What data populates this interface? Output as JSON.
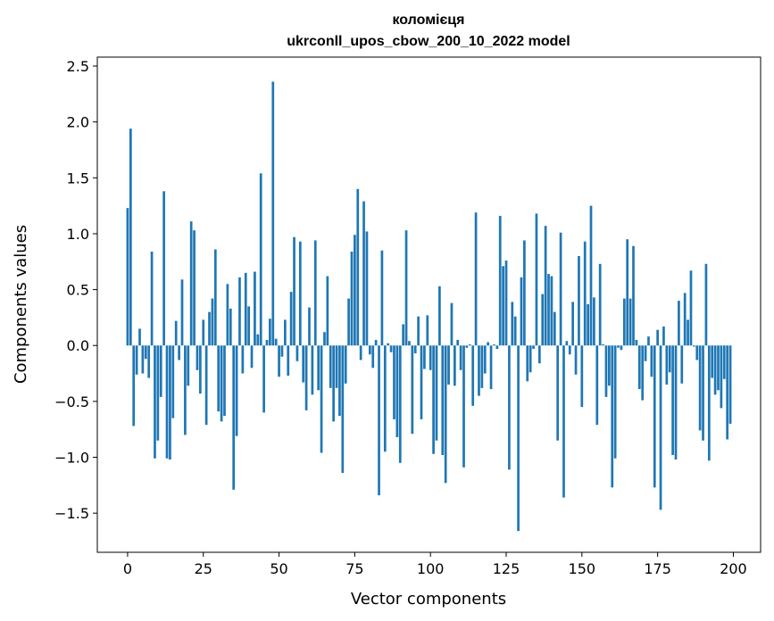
{
  "chart_data": {
    "type": "bar",
    "title_line1": "коломієця",
    "title_line2": "ukrconll_upos_cbow_200_10_2022 model",
    "xlabel": "Vector components",
    "ylabel": "Components values",
    "xlim": [
      -10,
      209
    ],
    "ylim": [
      -1.85,
      2.58
    ],
    "x_ticks": [
      0,
      25,
      50,
      75,
      100,
      125,
      150,
      175,
      200
    ],
    "y_ticks": [
      -1.5,
      -1.0,
      -0.5,
      0.0,
      0.5,
      1.0,
      1.5,
      2.0,
      2.5
    ],
    "y_tick_labels": [
      "−1.5",
      "−1.0",
      "−0.5",
      "0.0",
      "0.5",
      "1.0",
      "1.5",
      "2.0",
      "2.5"
    ],
    "bar_color": "#1f77b4",
    "grid": false,
    "x": [
      0,
      1,
      2,
      3,
      4,
      5,
      6,
      7,
      8,
      9,
      10,
      11,
      12,
      13,
      14,
      15,
      16,
      17,
      18,
      19,
      20,
      21,
      22,
      23,
      24,
      25,
      26,
      27,
      28,
      29,
      30,
      31,
      32,
      33,
      34,
      35,
      36,
      37,
      38,
      39,
      40,
      41,
      42,
      43,
      44,
      45,
      46,
      47,
      48,
      49,
      50,
      51,
      52,
      53,
      54,
      55,
      56,
      57,
      58,
      59,
      60,
      61,
      62,
      63,
      64,
      65,
      66,
      67,
      68,
      69,
      70,
      71,
      72,
      73,
      74,
      75,
      76,
      77,
      78,
      79,
      80,
      81,
      82,
      83,
      84,
      85,
      86,
      87,
      88,
      89,
      90,
      91,
      92,
      93,
      94,
      95,
      96,
      97,
      98,
      99,
      100,
      101,
      102,
      103,
      104,
      105,
      106,
      107,
      108,
      109,
      110,
      111,
      112,
      113,
      114,
      115,
      116,
      117,
      118,
      119,
      120,
      121,
      122,
      123,
      124,
      125,
      126,
      127,
      128,
      129,
      130,
      131,
      132,
      133,
      134,
      135,
      136,
      137,
      138,
      139,
      140,
      141,
      142,
      143,
      144,
      145,
      146,
      147,
      148,
      149,
      150,
      151,
      152,
      153,
      154,
      155,
      156,
      157,
      158,
      159,
      160,
      161,
      162,
      163,
      164,
      165,
      166,
      167,
      168,
      169,
      170,
      171,
      172,
      173,
      174,
      175,
      176,
      177,
      178,
      179,
      180,
      181,
      182,
      183,
      184,
      185,
      186,
      187,
      188,
      189,
      190,
      191,
      192,
      193,
      194,
      195,
      196,
      197,
      198,
      199
    ],
    "values": [
      1.23,
      1.94,
      -0.72,
      -0.26,
      0.15,
      -0.25,
      -0.12,
      -0.29,
      0.84,
      -1.01,
      -0.85,
      -0.46,
      1.38,
      -1.01,
      -1.02,
      -0.65,
      0.22,
      -0.13,
      0.59,
      -0.8,
      -0.36,
      1.11,
      1.03,
      -0.22,
      -0.43,
      0.23,
      -0.71,
      0.3,
      0.42,
      0.86,
      -0.59,
      -0.68,
      -0.63,
      0.55,
      0.33,
      -1.29,
      -0.81,
      0.61,
      -0.25,
      0.65,
      0.35,
      -0.2,
      0.66,
      0.1,
      1.54,
      -0.6,
      0.05,
      0.24,
      2.36,
      0.06,
      -0.28,
      -0.1,
      0.23,
      -0.27,
      0.48,
      0.97,
      -0.14,
      0.93,
      -0.33,
      -0.58,
      0.34,
      -0.44,
      0.94,
      -0.4,
      -0.96,
      0.12,
      0.62,
      -0.38,
      -0.68,
      -0.38,
      -0.63,
      -1.14,
      -0.34,
      0.42,
      0.84,
      0.99,
      1.4,
      -0.13,
      1.29,
      1.02,
      -0.08,
      -0.2,
      0.05,
      -1.34,
      0.85,
      -0.95,
      0.02,
      -0.06,
      -0.66,
      -0.82,
      -1.05,
      0.19,
      1.03,
      0.04,
      -0.79,
      -0.07,
      0.26,
      -0.66,
      -0.21,
      0.27,
      -0.22,
      -0.97,
      -0.85,
      0.53,
      -0.98,
      -1.23,
      -0.35,
      0.38,
      -0.36,
      0.05,
      -0.22,
      -1.09,
      -0.02,
      0.01,
      -0.54,
      1.19,
      -0.45,
      -0.38,
      -0.25,
      0.03,
      -0.39,
      0.01,
      -0.03,
      1.16,
      0.71,
      0.76,
      -1.11,
      0.39,
      0.26,
      -1.66,
      0.61,
      0.94,
      -0.32,
      -0.24,
      -0.03,
      1.18,
      -0.16,
      0.46,
      1.07,
      0.64,
      0.62,
      0.3,
      -0.85,
      1.01,
      -1.36,
      0.04,
      -0.08,
      0.39,
      -0.26,
      0.8,
      -0.55,
      0.93,
      0.37,
      1.25,
      0.43,
      -0.71,
      0.73,
      0.01,
      -0.46,
      -0.36,
      -1.27,
      -1.01,
      -0.02,
      -0.04,
      0.42,
      0.95,
      0.42,
      0.89,
      0.05,
      -0.39,
      -0.49,
      -0.14,
      0.08,
      -0.28,
      -1.27,
      0.14,
      -1.47,
      0.17,
      -0.35,
      -0.24,
      -0.98,
      -1.02,
      0.4,
      -0.34,
      0.47,
      0.23,
      0.67,
      -0.01,
      -0.13,
      -0.76,
      -0.85,
      0.73,
      -1.03,
      -0.29,
      -0.44,
      -0.4,
      -0.56,
      -0.3,
      -0.84,
      -0.7
    ]
  }
}
